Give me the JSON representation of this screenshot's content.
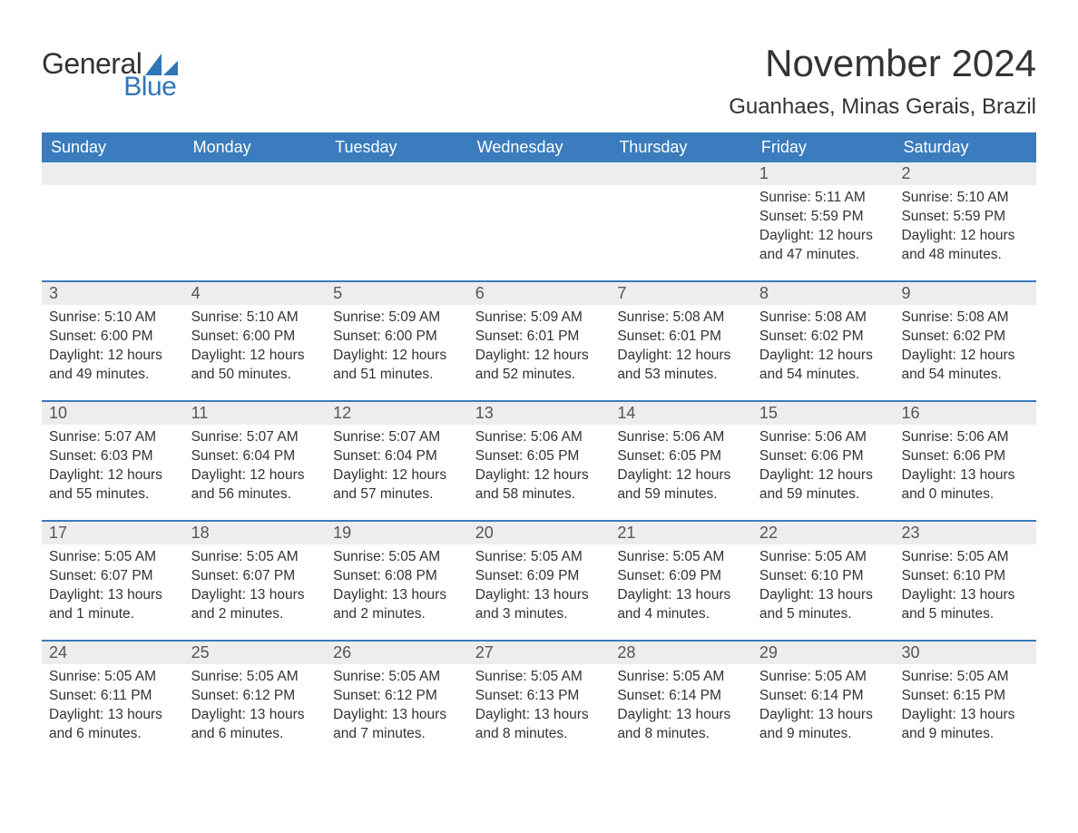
{
  "colors": {
    "brand_blue": "#2f76b8",
    "header_bg": "#3a7cbd",
    "row_stripe": "#ededed",
    "border_blue": "#3a7cbd",
    "text_dark": "#333333",
    "text_mid": "#555555",
    "white": "#ffffff"
  },
  "logo": {
    "text_general": "General",
    "text_blue": "Blue"
  },
  "title": "November 2024",
  "location": "Guanhaes, Minas Gerais, Brazil",
  "day_names": [
    "Sunday",
    "Monday",
    "Tuesday",
    "Wednesday",
    "Thursday",
    "Friday",
    "Saturday"
  ],
  "weeks": [
    [
      null,
      null,
      null,
      null,
      null,
      {
        "n": "1",
        "sr": "5:11 AM",
        "ss": "5:59 PM",
        "dl": "12 hours and 47 minutes."
      },
      {
        "n": "2",
        "sr": "5:10 AM",
        "ss": "5:59 PM",
        "dl": "12 hours and 48 minutes."
      }
    ],
    [
      {
        "n": "3",
        "sr": "5:10 AM",
        "ss": "6:00 PM",
        "dl": "12 hours and 49 minutes."
      },
      {
        "n": "4",
        "sr": "5:10 AM",
        "ss": "6:00 PM",
        "dl": "12 hours and 50 minutes."
      },
      {
        "n": "5",
        "sr": "5:09 AM",
        "ss": "6:00 PM",
        "dl": "12 hours and 51 minutes."
      },
      {
        "n": "6",
        "sr": "5:09 AM",
        "ss": "6:01 PM",
        "dl": "12 hours and 52 minutes."
      },
      {
        "n": "7",
        "sr": "5:08 AM",
        "ss": "6:01 PM",
        "dl": "12 hours and 53 minutes."
      },
      {
        "n": "8",
        "sr": "5:08 AM",
        "ss": "6:02 PM",
        "dl": "12 hours and 54 minutes."
      },
      {
        "n": "9",
        "sr": "5:08 AM",
        "ss": "6:02 PM",
        "dl": "12 hours and 54 minutes."
      }
    ],
    [
      {
        "n": "10",
        "sr": "5:07 AM",
        "ss": "6:03 PM",
        "dl": "12 hours and 55 minutes."
      },
      {
        "n": "11",
        "sr": "5:07 AM",
        "ss": "6:04 PM",
        "dl": "12 hours and 56 minutes."
      },
      {
        "n": "12",
        "sr": "5:07 AM",
        "ss": "6:04 PM",
        "dl": "12 hours and 57 minutes."
      },
      {
        "n": "13",
        "sr": "5:06 AM",
        "ss": "6:05 PM",
        "dl": "12 hours and 58 minutes."
      },
      {
        "n": "14",
        "sr": "5:06 AM",
        "ss": "6:05 PM",
        "dl": "12 hours and 59 minutes."
      },
      {
        "n": "15",
        "sr": "5:06 AM",
        "ss": "6:06 PM",
        "dl": "12 hours and 59 minutes."
      },
      {
        "n": "16",
        "sr": "5:06 AM",
        "ss": "6:06 PM",
        "dl": "13 hours and 0 minutes."
      }
    ],
    [
      {
        "n": "17",
        "sr": "5:05 AM",
        "ss": "6:07 PM",
        "dl": "13 hours and 1 minute."
      },
      {
        "n": "18",
        "sr": "5:05 AM",
        "ss": "6:07 PM",
        "dl": "13 hours and 2 minutes."
      },
      {
        "n": "19",
        "sr": "5:05 AM",
        "ss": "6:08 PM",
        "dl": "13 hours and 2 minutes."
      },
      {
        "n": "20",
        "sr": "5:05 AM",
        "ss": "6:09 PM",
        "dl": "13 hours and 3 minutes."
      },
      {
        "n": "21",
        "sr": "5:05 AM",
        "ss": "6:09 PM",
        "dl": "13 hours and 4 minutes."
      },
      {
        "n": "22",
        "sr": "5:05 AM",
        "ss": "6:10 PM",
        "dl": "13 hours and 5 minutes."
      },
      {
        "n": "23",
        "sr": "5:05 AM",
        "ss": "6:10 PM",
        "dl": "13 hours and 5 minutes."
      }
    ],
    [
      {
        "n": "24",
        "sr": "5:05 AM",
        "ss": "6:11 PM",
        "dl": "13 hours and 6 minutes."
      },
      {
        "n": "25",
        "sr": "5:05 AM",
        "ss": "6:12 PM",
        "dl": "13 hours and 6 minutes."
      },
      {
        "n": "26",
        "sr": "5:05 AM",
        "ss": "6:12 PM",
        "dl": "13 hours and 7 minutes."
      },
      {
        "n": "27",
        "sr": "5:05 AM",
        "ss": "6:13 PM",
        "dl": "13 hours and 8 minutes."
      },
      {
        "n": "28",
        "sr": "5:05 AM",
        "ss": "6:14 PM",
        "dl": "13 hours and 8 minutes."
      },
      {
        "n": "29",
        "sr": "5:05 AM",
        "ss": "6:14 PM",
        "dl": "13 hours and 9 minutes."
      },
      {
        "n": "30",
        "sr": "5:05 AM",
        "ss": "6:15 PM",
        "dl": "13 hours and 9 minutes."
      }
    ]
  ],
  "labels": {
    "sunrise": "Sunrise: ",
    "sunset": "Sunset: ",
    "daylight": "Daylight: "
  }
}
